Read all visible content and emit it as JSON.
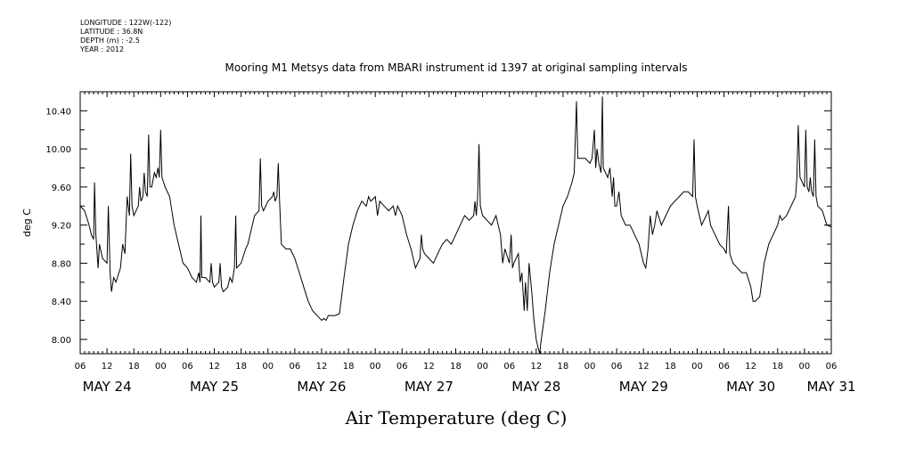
{
  "header": {
    "longitude": "LONGITUDE : 122W(-122)",
    "latitude": "LATITUDE : 36.8N",
    "depth": "DEPTH (m) : -2.5",
    "year": "YEAR : 2012"
  },
  "chart_data": {
    "type": "line",
    "title": "Mooring M1 Metsys data from MBARI instrument id 1397 at original sampling intervals",
    "xlabel": "Air Temperature (deg C)",
    "ylabel": "deg C",
    "xlim": [
      0,
      168
    ],
    "ylim": [
      7.85,
      10.6
    ],
    "yticks": [
      8.0,
      8.4,
      8.8,
      9.2,
      9.6,
      10.0,
      10.4
    ],
    "ytick_labels": [
      "8.00",
      "8.40",
      "8.80",
      "9.20",
      "9.60",
      "10.00",
      "10.40"
    ],
    "xtick_hours": [
      0,
      6,
      12,
      18,
      24,
      30,
      36,
      42,
      48,
      54,
      60,
      66,
      72,
      78,
      84,
      90,
      96,
      102,
      108,
      114,
      120,
      126,
      132,
      138,
      144,
      150,
      156,
      162,
      168
    ],
    "xtick_labels": [
      "06",
      "12",
      "18",
      "00",
      "06",
      "12",
      "18",
      "00",
      "06",
      "12",
      "18",
      "00",
      "06",
      "12",
      "18",
      "00",
      "06",
      "12",
      "18",
      "00",
      "06",
      "12",
      "18",
      "00",
      "06",
      "12",
      "18",
      "00",
      "06"
    ],
    "day_labels": [
      {
        "hour": 6,
        "label": "MAY 24"
      },
      {
        "hour": 30,
        "label": "MAY 25"
      },
      {
        "hour": 54,
        "label": "MAY 26"
      },
      {
        "hour": 78,
        "label": "MAY 27"
      },
      {
        "hour": 102,
        "label": "MAY 28"
      },
      {
        "hour": 126,
        "label": "MAY 29"
      },
      {
        "hour": 150,
        "label": "MAY 30"
      },
      {
        "hour": 168,
        "label": "MAY 31"
      }
    ],
    "series": [
      {
        "color": "#000000",
        "points": [
          [
            0,
            9.4
          ],
          [
            1,
            9.35
          ],
          [
            2,
            9.2
          ],
          [
            2.5,
            9.1
          ],
          [
            3,
            9.05
          ],
          [
            3.2,
            9.65
          ],
          [
            3.5,
            9.1
          ],
          [
            4,
            8.75
          ],
          [
            4.3,
            9.0
          ],
          [
            5,
            8.85
          ],
          [
            6,
            8.8
          ],
          [
            6.3,
            9.4
          ],
          [
            6.7,
            8.7
          ],
          [
            7,
            8.5
          ],
          [
            7.5,
            8.65
          ],
          [
            8,
            8.6
          ],
          [
            9,
            8.75
          ],
          [
            9.5,
            9.0
          ],
          [
            10,
            8.9
          ],
          [
            10.5,
            9.5
          ],
          [
            11,
            9.3
          ],
          [
            11.3,
            9.95
          ],
          [
            11.6,
            9.4
          ],
          [
            12,
            9.3
          ],
          [
            13,
            9.4
          ],
          [
            13.3,
            9.6
          ],
          [
            13.6,
            9.45
          ],
          [
            14,
            9.5
          ],
          [
            14.3,
            9.75
          ],
          [
            14.6,
            9.55
          ],
          [
            15,
            9.5
          ],
          [
            15.3,
            10.15
          ],
          [
            15.6,
            9.6
          ],
          [
            16,
            9.6
          ],
          [
            16.6,
            9.75
          ],
          [
            17,
            9.7
          ],
          [
            17.4,
            9.8
          ],
          [
            17.7,
            9.7
          ],
          [
            18,
            10.2
          ],
          [
            18.3,
            9.7
          ],
          [
            19,
            9.6
          ],
          [
            20,
            9.5
          ],
          [
            21,
            9.2
          ],
          [
            22,
            9.0
          ],
          [
            23,
            8.8
          ],
          [
            24,
            8.75
          ],
          [
            25,
            8.65
          ],
          [
            26,
            8.6
          ],
          [
            26.5,
            8.7
          ],
          [
            26.8,
            8.6
          ],
          [
            27,
            9.3
          ],
          [
            27.2,
            8.65
          ],
          [
            28,
            8.65
          ],
          [
            29,
            8.6
          ],
          [
            29.3,
            8.8
          ],
          [
            29.6,
            8.6
          ],
          [
            30,
            8.55
          ],
          [
            31,
            8.6
          ],
          [
            31.3,
            8.8
          ],
          [
            31.6,
            8.55
          ],
          [
            32,
            8.5
          ],
          [
            33,
            8.55
          ],
          [
            33.5,
            8.65
          ],
          [
            34,
            8.6
          ],
          [
            34.5,
            8.75
          ],
          [
            34.8,
            9.3
          ],
          [
            35,
            8.75
          ],
          [
            36,
            8.8
          ],
          [
            37,
            8.95
          ],
          [
            37.5,
            9.0
          ],
          [
            38,
            9.1
          ],
          [
            39,
            9.3
          ],
          [
            40,
            9.35
          ],
          [
            40.3,
            9.9
          ],
          [
            40.6,
            9.4
          ],
          [
            41,
            9.35
          ],
          [
            42,
            9.45
          ],
          [
            43,
            9.5
          ],
          [
            43.3,
            9.55
          ],
          [
            43.6,
            9.45
          ],
          [
            44,
            9.5
          ],
          [
            44.3,
            9.85
          ],
          [
            44.6,
            9.45
          ],
          [
            45,
            9.0
          ],
          [
            46,
            8.95
          ],
          [
            47,
            8.95
          ],
          [
            48,
            8.85
          ],
          [
            49,
            8.7
          ],
          [
            50,
            8.55
          ],
          [
            51,
            8.4
          ],
          [
            52,
            8.3
          ],
          [
            53,
            8.25
          ],
          [
            54,
            8.2
          ],
          [
            54.5,
            8.22
          ],
          [
            55,
            8.2
          ],
          [
            55.5,
            8.25
          ],
          [
            56,
            8.25
          ],
          [
            57,
            8.25
          ],
          [
            58,
            8.27
          ],
          [
            59,
            8.65
          ],
          [
            60,
            9.0
          ],
          [
            61,
            9.2
          ],
          [
            62,
            9.35
          ],
          [
            63,
            9.45
          ],
          [
            64,
            9.4
          ],
          [
            64.5,
            9.5
          ],
          [
            65,
            9.45
          ],
          [
            66,
            9.5
          ],
          [
            66.5,
            9.3
          ],
          [
            67,
            9.45
          ],
          [
            68,
            9.4
          ],
          [
            69,
            9.35
          ],
          [
            70,
            9.4
          ],
          [
            70.5,
            9.3
          ],
          [
            71,
            9.4
          ],
          [
            72,
            9.3
          ],
          [
            73,
            9.1
          ],
          [
            74,
            8.95
          ],
          [
            74.5,
            8.85
          ],
          [
            75,
            8.75
          ],
          [
            75.5,
            8.8
          ],
          [
            76,
            8.85
          ],
          [
            76.3,
            9.1
          ],
          [
            76.6,
            8.95
          ],
          [
            77,
            8.9
          ],
          [
            78,
            8.85
          ],
          [
            79,
            8.8
          ],
          [
            80,
            8.9
          ],
          [
            81,
            9.0
          ],
          [
            82,
            9.05
          ],
          [
            83,
            9.0
          ],
          [
            84,
            9.1
          ],
          [
            85,
            9.2
          ],
          [
            86,
            9.3
          ],
          [
            87,
            9.25
          ],
          [
            88,
            9.3
          ],
          [
            88.3,
            9.45
          ],
          [
            88.6,
            9.3
          ],
          [
            88.9,
            9.5
          ],
          [
            89.2,
            10.05
          ],
          [
            89.5,
            9.4
          ],
          [
            90,
            9.3
          ],
          [
            91,
            9.25
          ],
          [
            92,
            9.2
          ],
          [
            93,
            9.3
          ],
          [
            94,
            9.1
          ],
          [
            94.5,
            8.8
          ],
          [
            95,
            8.95
          ],
          [
            96,
            8.8
          ],
          [
            96.4,
            9.1
          ],
          [
            96.7,
            8.75
          ],
          [
            97,
            8.8
          ],
          [
            98,
            8.9
          ],
          [
            98.4,
            8.6
          ],
          [
            98.8,
            8.7
          ],
          [
            99.3,
            8.3
          ],
          [
            99.6,
            8.6
          ],
          [
            100,
            8.3
          ],
          [
            100.4,
            8.8
          ],
          [
            100.8,
            8.6
          ],
          [
            101,
            8.5
          ],
          [
            101.5,
            8.2
          ],
          [
            102,
            8.0
          ],
          [
            102.5,
            7.9
          ],
          [
            102.8,
            7.85
          ],
          [
            103,
            7.95
          ],
          [
            104,
            8.3
          ],
          [
            105,
            8.7
          ],
          [
            106,
            9.0
          ],
          [
            107,
            9.2
          ],
          [
            108,
            9.4
          ],
          [
            109,
            9.5
          ],
          [
            110,
            9.65
          ],
          [
            110.5,
            9.75
          ],
          [
            111,
            10.5
          ],
          [
            111.3,
            9.9
          ],
          [
            112,
            9.9
          ],
          [
            113,
            9.9
          ],
          [
            114,
            9.85
          ],
          [
            114.5,
            9.9
          ],
          [
            115,
            10.2
          ],
          [
            115.3,
            9.8
          ],
          [
            115.6,
            10.0
          ],
          [
            116,
            9.85
          ],
          [
            116.5,
            9.75
          ],
          [
            116.8,
            10.55
          ],
          [
            117,
            9.8
          ],
          [
            118,
            9.7
          ],
          [
            118.5,
            9.8
          ],
          [
            119,
            9.5
          ],
          [
            119.3,
            9.7
          ],
          [
            119.6,
            9.4
          ],
          [
            120,
            9.4
          ],
          [
            120.5,
            9.55
          ],
          [
            121,
            9.3
          ],
          [
            122,
            9.2
          ],
          [
            123,
            9.2
          ],
          [
            124,
            9.1
          ],
          [
            125,
            9.0
          ],
          [
            126,
            8.8
          ],
          [
            126.5,
            8.75
          ],
          [
            127,
            8.95
          ],
          [
            127.5,
            9.3
          ],
          [
            128,
            9.1
          ],
          [
            128.5,
            9.2
          ],
          [
            129,
            9.35
          ],
          [
            130,
            9.2
          ],
          [
            131,
            9.3
          ],
          [
            132,
            9.4
          ],
          [
            133,
            9.45
          ],
          [
            134,
            9.5
          ],
          [
            135,
            9.55
          ],
          [
            136,
            9.55
          ],
          [
            137,
            9.5
          ],
          [
            137.3,
            10.1
          ],
          [
            137.6,
            9.5
          ],
          [
            138,
            9.4
          ],
          [
            139,
            9.2
          ],
          [
            140,
            9.3
          ],
          [
            140.5,
            9.35
          ],
          [
            141,
            9.2
          ],
          [
            142,
            9.1
          ],
          [
            143,
            9.0
          ],
          [
            144,
            8.95
          ],
          [
            144.5,
            8.9
          ],
          [
            145,
            9.4
          ],
          [
            145.3,
            8.9
          ],
          [
            146,
            8.8
          ],
          [
            147,
            8.75
          ],
          [
            148,
            8.7
          ],
          [
            149,
            8.7
          ],
          [
            150,
            8.55
          ],
          [
            150.5,
            8.4
          ],
          [
            151,
            8.4
          ],
          [
            152,
            8.45
          ],
          [
            153,
            8.8
          ],
          [
            154,
            9.0
          ],
          [
            155,
            9.1
          ],
          [
            156,
            9.2
          ],
          [
            156.5,
            9.3
          ],
          [
            157,
            9.25
          ],
          [
            158,
            9.3
          ],
          [
            159,
            9.4
          ],
          [
            160,
            9.5
          ],
          [
            160.3,
            9.7
          ],
          [
            160.6,
            10.25
          ],
          [
            161,
            9.7
          ],
          [
            162,
            9.6
          ],
          [
            162.3,
            10.2
          ],
          [
            162.6,
            9.6
          ],
          [
            163,
            9.55
          ],
          [
            163.3,
            9.7
          ],
          [
            163.6,
            9.55
          ],
          [
            164,
            9.5
          ],
          [
            164.3,
            10.1
          ],
          [
            164.6,
            9.5
          ],
          [
            165,
            9.4
          ],
          [
            166,
            9.35
          ],
          [
            167,
            9.2
          ],
          [
            168,
            9.18
          ]
        ]
      }
    ]
  }
}
